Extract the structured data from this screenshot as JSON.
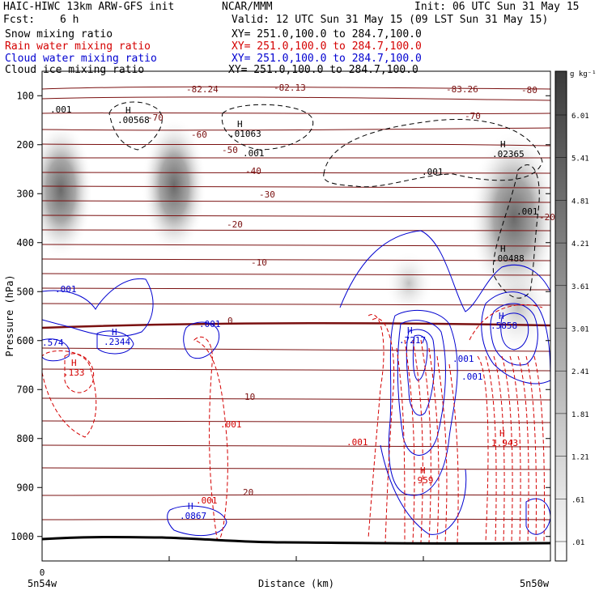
{
  "header": {
    "title_left": "HAIC-HIWC 13km ARW-GFS init",
    "org": "NCAR/MMM",
    "init": "Init: 06 UTC Sun 31 May 15",
    "fcst_label": "Fcst:",
    "fcst_value": "6 h",
    "valid": "Valid: 12 UTC Sun 31 May 15 (09 LST Sun 31 May 15)"
  },
  "legend": [
    {
      "label": "Snow mixing ratio",
      "xy": "XY= 251.0,100.0 to 284.7,100.0",
      "color": "#000000"
    },
    {
      "label": "Rain water mixing ratio",
      "xy": "XY= 251.0,100.0 to 284.7,100.0",
      "color": "#d40000"
    },
    {
      "label": "Cloud water mixing ratio",
      "xy": "XY= 251.0,100.0 to 284.7,100.0",
      "color": "#0000d0"
    },
    {
      "label": "Cloud ice mixing ratio",
      "xy": "XY= 251.0,100.0 to 284.7,100.0",
      "color": "#000000"
    }
  ],
  "chart_data": {
    "type": "heatmap",
    "ylabel": "Pressure (hPa)",
    "xlabel": "Distance (km)",
    "y_ticks": [
      100,
      200,
      300,
      400,
      500,
      600,
      700,
      800,
      900,
      1000
    ],
    "ylim": [
      1050,
      50
    ],
    "x_tick_label": "0",
    "x_left_label": "5n54w",
    "x_right_label": "5n50w",
    "colorbar": {
      "unit": "g kg⁻¹",
      "levels": [
        "6.01",
        "5.41",
        "4.81",
        "4.21",
        "3.61",
        "3.01",
        "2.41",
        "1.81",
        "1.21",
        ".61",
        ".01"
      ]
    },
    "temperature_labels": [
      "-82.24",
      "-82.13",
      "-83.26",
      "-80",
      "-70",
      "-70",
      "-60",
      "-50",
      "-40",
      "-30",
      "-20",
      "-20",
      "-10",
      "0",
      "10",
      "20"
    ],
    "max_labels": [
      {
        "text": "H",
        "value": ".00568",
        "color": "#000000"
      },
      {
        "text": "H",
        "value": ".01063",
        "color": "#000000"
      },
      {
        "text": "H",
        "value": ".02365",
        "color": "#000000"
      },
      {
        "text": "H",
        "value": ".00488",
        "color": "#000000"
      },
      {
        "text": "H",
        "value": ".2344",
        "color": "#0000d0"
      },
      {
        "text": "H",
        "value": ".7217",
        "color": "#0000d0"
      },
      {
        "text": "H",
        "value": ".5858",
        "color": "#0000d0"
      },
      {
        "text": "H",
        "value": ".0867",
        "color": "#0000d0"
      },
      {
        "text": "H",
        "value": ".959",
        "color": "#d40000"
      },
      {
        "text": "H",
        "value": "1.943",
        "color": "#d40000"
      },
      {
        "text": "H",
        "value": ".133",
        "color": "#d40000"
      }
    ],
    "contour_labels": [
      ".001",
      ".001",
      ".001",
      ".001",
      ".001",
      ".001",
      ".001",
      ".001",
      ".001",
      ".001",
      ".001",
      ".574"
    ]
  }
}
